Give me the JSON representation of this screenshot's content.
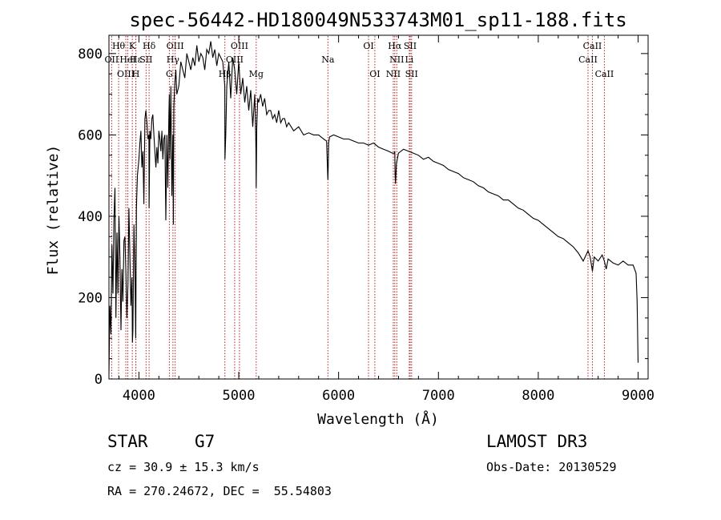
{
  "chart_data": {
    "type": "line",
    "title": "spec-56442-HD180049N533743M01_sp11-188.fits",
    "xlabel": "Wavelength (Å)",
    "ylabel": "Flux (relative)",
    "xlim": [
      3700,
      9100
    ],
    "ylim": [
      0,
      845
    ],
    "x_ticks": [
      4000,
      5000,
      6000,
      7000,
      8000,
      9000
    ],
    "y_ticks": [
      0,
      200,
      400,
      600,
      800
    ],
    "series": [
      {
        "name": "flux",
        "x": [
          3700,
          3710,
          3720,
          3730,
          3740,
          3750,
          3760,
          3770,
          3780,
          3790,
          3800,
          3810,
          3820,
          3830,
          3840,
          3850,
          3860,
          3870,
          3880,
          3890,
          3900,
          3910,
          3920,
          3930,
          3935,
          3940,
          3950,
          3960,
          3968,
          3975,
          3985,
          4000,
          4010,
          4020,
          4030,
          4040,
          4050,
          4060,
          4070,
          4080,
          4090,
          4100,
          4102,
          4110,
          4120,
          4130,
          4140,
          4150,
          4160,
          4170,
          4180,
          4190,
          4200,
          4210,
          4220,
          4230,
          4240,
          4250,
          4260,
          4270,
          4280,
          4290,
          4300,
          4305,
          4310,
          4320,
          4330,
          4340,
          4345,
          4350,
          4360,
          4370,
          4380,
          4400,
          4420,
          4440,
          4460,
          4480,
          4500,
          4520,
          4540,
          4560,
          4580,
          4600,
          4620,
          4640,
          4660,
          4680,
          4700,
          4720,
          4740,
          4760,
          4780,
          4800,
          4820,
          4840,
          4860,
          4862,
          4870,
          4880,
          4900,
          4920,
          4940,
          4960,
          4980,
          5000,
          5020,
          5040,
          5060,
          5080,
          5100,
          5120,
          5140,
          5160,
          5170,
          5172,
          5175,
          5180,
          5190,
          5200,
          5220,
          5240,
          5260,
          5280,
          5300,
          5320,
          5340,
          5360,
          5380,
          5400,
          5420,
          5440,
          5460,
          5480,
          5500,
          5550,
          5600,
          5650,
          5700,
          5750,
          5800,
          5850,
          5880,
          5890,
          5893,
          5896,
          5900,
          5910,
          5950,
          6000,
          6050,
          6100,
          6150,
          6200,
          6250,
          6300,
          6350,
          6400,
          6450,
          6500,
          6540,
          6560,
          6563,
          6566,
          6570,
          6580,
          6600,
          6650,
          6700,
          6750,
          6800,
          6850,
          6900,
          6950,
          7000,
          7050,
          7100,
          7150,
          7200,
          7250,
          7300,
          7350,
          7400,
          7450,
          7500,
          7550,
          7600,
          7650,
          7700,
          7750,
          7800,
          7850,
          7900,
          7950,
          8000,
          8050,
          8100,
          8150,
          8200,
          8250,
          8300,
          8350,
          8400,
          8450,
          8498,
          8520,
          8542,
          8560,
          8600,
          8640,
          8662,
          8680,
          8700,
          8750,
          8800,
          8850,
          8900,
          8950,
          8980,
          8990,
          9000
        ],
        "y": [
          15,
          180,
          110,
          330,
          210,
          390,
          470,
          150,
          360,
          210,
          400,
          300,
          120,
          270,
          190,
          340,
          350,
          260,
          150,
          230,
          420,
          300,
          180,
          250,
          90,
          120,
          380,
          280,
          100,
          420,
          500,
          540,
          580,
          610,
          520,
          560,
          430,
          640,
          660,
          630,
          590,
          600,
          420,
          610,
          590,
          640,
          650,
          600,
          560,
          520,
          570,
          530,
          610,
          590,
          560,
          610,
          540,
          590,
          600,
          390,
          600,
          470,
          650,
          700,
          540,
          720,
          450,
          600,
          380,
          670,
          730,
          760,
          700,
          720,
          780,
          760,
          740,
          800,
          780,
          760,
          790,
          770,
          820,
          780,
          800,
          790,
          760,
          810,
          800,
          830,
          790,
          810,
          770,
          800,
          790,
          780,
          720,
          540,
          600,
          720,
          780,
          690,
          790,
          760,
          700,
          780,
          700,
          740,
          680,
          720,
          660,
          710,
          620,
          700,
          600,
          560,
          470,
          620,
          690,
          680,
          700,
          670,
          690,
          650,
          660,
          660,
          640,
          650,
          630,
          660,
          630,
          640,
          640,
          620,
          630,
          610,
          620,
          600,
          605,
          600,
          600,
          590,
          585,
          510,
          490,
          520,
          580,
          595,
          600,
          595,
          590,
          590,
          585,
          580,
          580,
          575,
          580,
          570,
          565,
          560,
          555,
          555,
          560,
          505,
          480,
          530,
          555,
          565,
          560,
          555,
          550,
          540,
          545,
          535,
          530,
          525,
          515,
          510,
          505,
          495,
          490,
          485,
          475,
          470,
          460,
          455,
          450,
          440,
          440,
          430,
          420,
          415,
          405,
          395,
          390,
          380,
          370,
          360,
          350,
          345,
          335,
          325,
          310,
          290,
          315,
          300,
          265,
          300,
          290,
          305,
          290,
          270,
          295,
          285,
          280,
          290,
          280,
          280,
          260,
          190,
          40
        ]
      }
    ],
    "line_labels": [
      {
        "text": "Hθ",
        "wavelength": 3797,
        "row": 1
      },
      {
        "text": "OII",
        "wavelength": 3727,
        "row": 2
      },
      {
        "text": "OIII",
        "wavelength": 3869,
        "row": 3
      },
      {
        "text": "HeI",
        "wavelength": 3889,
        "row": 2
      },
      {
        "text": "K",
        "wavelength": 3934,
        "row": 1
      },
      {
        "text": "Hε",
        "wavelength": 3970,
        "row": 2
      },
      {
        "text": "H",
        "wavelength": 3969,
        "row": 3
      },
      {
        "text": "Hδ",
        "wavelength": 4102,
        "row": 1
      },
      {
        "text": "SII",
        "wavelength": 4072,
        "row": 2
      },
      {
        "text": "OIII",
        "wavelength": 4363,
        "row": 1
      },
      {
        "text": "Hγ",
        "wavelength": 4341,
        "row": 2
      },
      {
        "text": "G",
        "wavelength": 4305,
        "row": 3
      },
      {
        "text": "OIII",
        "wavelength": 5007,
        "row": 1
      },
      {
        "text": "OIII",
        "wavelength": 4959,
        "row": 2
      },
      {
        "text": "Hβ",
        "wavelength": 4861,
        "row": 3
      },
      {
        "text": "Mg",
        "wavelength": 5175,
        "row": 3
      },
      {
        "text": "Na",
        "wavelength": 5893,
        "row": 2
      },
      {
        "text": "OI",
        "wavelength": 6300,
        "row": 1
      },
      {
        "text": "OI",
        "wavelength": 6363,
        "row": 3
      },
      {
        "text": "Hα",
        "wavelength": 6563,
        "row": 1
      },
      {
        "text": "NII",
        "wavelength": 6583,
        "row": 2
      },
      {
        "text": "NII",
        "wavelength": 6548,
        "row": 3
      },
      {
        "text": "SII",
        "wavelength": 6717,
        "row": 1
      },
      {
        "text": "Li",
        "wavelength": 6708,
        "row": 2
      },
      {
        "text": "SII",
        "wavelength": 6731,
        "row": 3
      },
      {
        "text": "CaII",
        "wavelength": 8542,
        "row": 1
      },
      {
        "text": "CaII",
        "wavelength": 8498,
        "row": 2
      },
      {
        "text": "CaII",
        "wavelength": 8662,
        "row": 3
      }
    ]
  },
  "info": {
    "class_label": "STAR",
    "subclass": "G7",
    "survey": "LAMOST DR3",
    "cz": "cz = 30.9 ± 15.3 km/s",
    "obs_date": "Obs-Date: 20130529",
    "coords": "RA = 270.24672, DEC =  55.54803"
  },
  "colors": {
    "line_marker": "#b22222",
    "spectrum": "#000000",
    "axis": "#000000",
    "background": "#ffffff"
  }
}
